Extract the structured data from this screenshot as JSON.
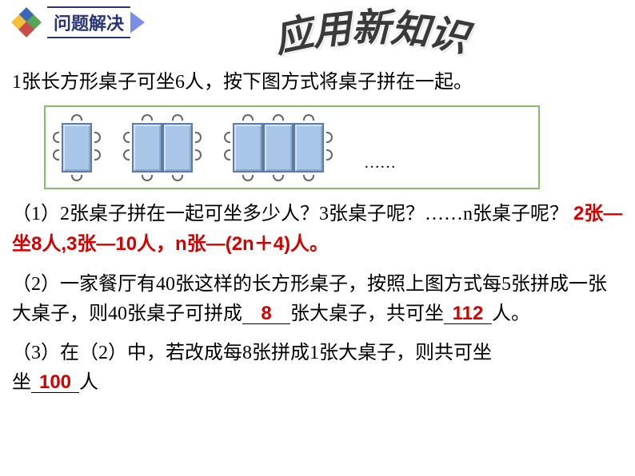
{
  "header": {
    "section_label": "问题解决",
    "title_chars": [
      "应",
      "用",
      "新",
      "知",
      "识"
    ],
    "title_rotations": [
      -12,
      -6,
      0,
      6,
      12
    ],
    "title_offsets": [
      10,
      3,
      0,
      3,
      10
    ],
    "logo_colors": [
      "#3b67b5",
      "#f2c037",
      "#54a554",
      "#c94b4b"
    ]
  },
  "problem": {
    "intro": "1张长方形桌子可坐6人，按下图方式将桌子拼在一起。",
    "diagram": {
      "groups": [
        1,
        2,
        3
      ],
      "table_fill": "#a8c6e8",
      "table_border": "#5b7ca8",
      "frame_border": "#89b96f",
      "dots": "……"
    },
    "q1_text": "（1）2张桌子拼在一起可坐多少人？3张桌子呢？……n张桌子呢？",
    "q1_answer": "2张—坐8人,3张—10人，n张—(2n＋4)人。",
    "q2_pre": "（2）一家餐厅有40张这样的长方形桌子，按照上图方式每5张拼成一张大桌子，则40张桌子可拼成",
    "q2_ans1": "8",
    "q2_mid": "张大桌子，共可坐",
    "q2_ans2": "112",
    "q2_post": "人。",
    "q3_pre": "（3）在（2）中，若改成每8张拼成1张大桌子，则共可坐",
    "q3_ans": "100",
    "q3_post": "人"
  },
  "colors": {
    "answer": "#d40000",
    "text": "#000000",
    "section_text": "#2a3576"
  }
}
